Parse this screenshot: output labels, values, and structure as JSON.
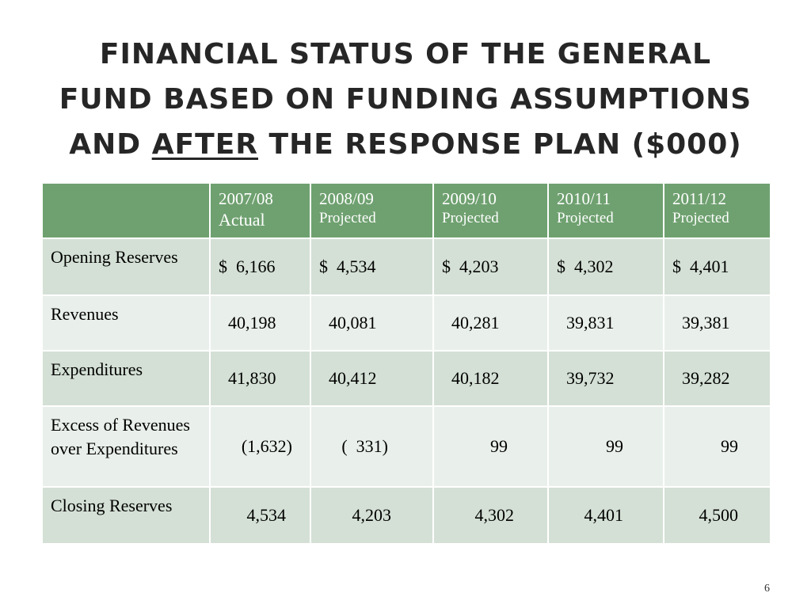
{
  "slide": {
    "title": {
      "line1": "FINANCIAL STATUS OF THE GENERAL",
      "line2": "FUND BASED ON FUNDING ASSUMPTIONS",
      "line3_prefix": "AND ",
      "line3_underlined": "AFTER",
      "line3_suffix": " THE RESPONSE PLAN ($000)"
    },
    "page_number": "6"
  },
  "table": {
    "header": {
      "corner": "",
      "columns": [
        {
          "year": "2007/08",
          "sub": "Actual"
        },
        {
          "year": "2008/09",
          "sub": "Projected"
        },
        {
          "year": "2009/10",
          "sub": "Projected"
        },
        {
          "year": "2010/11",
          "sub": "Projected"
        },
        {
          "year": "2011/12",
          "sub": "Projected"
        }
      ]
    },
    "rows": [
      {
        "label": "Opening Reserves",
        "values": [
          "$  6,166",
          "$  4,534",
          "$  4,203",
          "$  4,302",
          "$  4,401"
        ]
      },
      {
        "label": "Revenues",
        "values": [
          "40,198",
          "40,081",
          "40,281",
          "39,831",
          "39,381"
        ]
      },
      {
        "label": "Expenditures",
        "values": [
          "41,830",
          "40,412",
          "40,182",
          "39,732",
          "39,282"
        ]
      },
      {
        "label": "Excess of Revenues over Expenditures",
        "values": [
          "(1,632)",
          "(  331)",
          "99",
          "99",
          "99"
        ]
      },
      {
        "label": "Closing Reserves",
        "values": [
          "4,534",
          "4,203",
          "4,302",
          "4,401",
          "4,500"
        ]
      }
    ]
  }
}
